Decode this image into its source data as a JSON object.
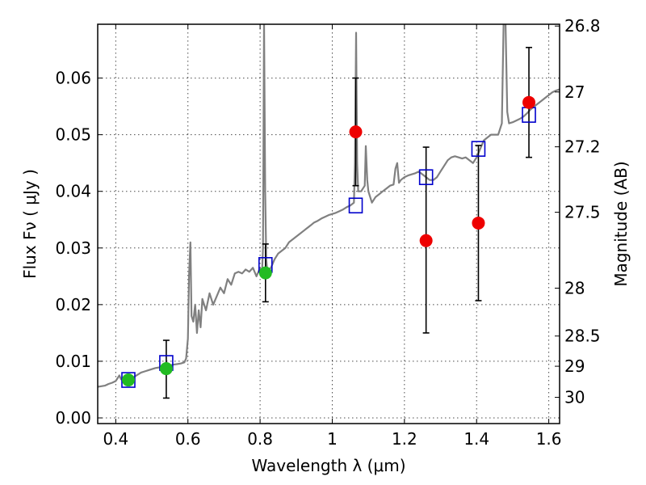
{
  "chart_data": {
    "type": "scatter",
    "x_axis": {
      "label": "Wavelength  λ (μm)",
      "range": [
        0.35,
        1.63
      ],
      "ticks": [
        0.4,
        0.6,
        0.8,
        1.0,
        1.2,
        1.4,
        1.6
      ],
      "tick_labels": [
        "0.4",
        "0.6",
        "0.8",
        "1",
        "1.2",
        "1.4",
        "1.6"
      ]
    },
    "y_axis": {
      "label": "Flux  Fν  ( μJy )",
      "range": [
        -0.001,
        0.0695
      ],
      "ticks": [
        0.0,
        0.01,
        0.02,
        0.03,
        0.04,
        0.05,
        0.06
      ],
      "tick_labels": [
        "0.00",
        "0.01",
        "0.02",
        "0.03",
        "0.04",
        "0.05",
        "0.06"
      ]
    },
    "y2_axis": {
      "label": "Magnitude (AB)",
      "ticks": [
        26.8,
        27,
        27.2,
        27.5,
        28,
        28.5,
        29,
        30
      ],
      "tick_labels": [
        "26.8",
        "27",
        "27.2",
        "27.5",
        "28",
        "28.5",
        "29",
        "30"
      ]
    },
    "grid": true,
    "colors": {
      "spectrum": "#808080",
      "model_boxes": "#0000cc",
      "detections_optical": "#22bb22",
      "detections_nir": "#ee0000",
      "errorbars": "#000000"
    },
    "series": [
      {
        "type": "line",
        "points": [
          [
            0.35,
            0.0055
          ],
          [
            0.36,
            0.0056
          ],
          [
            0.37,
            0.0057
          ],
          [
            0.38,
            0.006
          ],
          [
            0.39,
            0.0062
          ],
          [
            0.4,
            0.0065
          ],
          [
            0.405,
            0.007
          ],
          [
            0.41,
            0.0075
          ],
          [
            0.415,
            0.0068
          ],
          [
            0.42,
            0.0066
          ],
          [
            0.43,
            0.0068
          ],
          [
            0.44,
            0.007
          ],
          [
            0.45,
            0.0072
          ],
          [
            0.46,
            0.0076
          ],
          [
            0.47,
            0.008
          ],
          [
            0.48,
            0.0082
          ],
          [
            0.49,
            0.0084
          ],
          [
            0.5,
            0.0086
          ],
          [
            0.51,
            0.0088
          ],
          [
            0.52,
            0.0089
          ],
          [
            0.53,
            0.009
          ],
          [
            0.54,
            0.0092
          ],
          [
            0.55,
            0.0093
          ],
          [
            0.56,
            0.0094
          ],
          [
            0.57,
            0.0095
          ],
          [
            0.58,
            0.0096
          ],
          [
            0.59,
            0.0098
          ],
          [
            0.595,
            0.0105
          ],
          [
            0.6,
            0.014
          ],
          [
            0.603,
            0.025
          ],
          [
            0.607,
            0.031
          ],
          [
            0.61,
            0.018
          ],
          [
            0.615,
            0.017
          ],
          [
            0.62,
            0.02
          ],
          [
            0.625,
            0.015
          ],
          [
            0.63,
            0.019
          ],
          [
            0.635,
            0.016
          ],
          [
            0.64,
            0.021
          ],
          [
            0.65,
            0.019
          ],
          [
            0.66,
            0.022
          ],
          [
            0.67,
            0.02
          ],
          [
            0.68,
            0.0215
          ],
          [
            0.69,
            0.023
          ],
          [
            0.7,
            0.022
          ],
          [
            0.71,
            0.0245
          ],
          [
            0.72,
            0.0235
          ],
          [
            0.73,
            0.0255
          ],
          [
            0.74,
            0.0258
          ],
          [
            0.75,
            0.0255
          ],
          [
            0.76,
            0.0262
          ],
          [
            0.77,
            0.0258
          ],
          [
            0.78,
            0.0265
          ],
          [
            0.79,
            0.025
          ],
          [
            0.8,
            0.0265
          ],
          [
            0.805,
            0.025
          ],
          [
            0.808,
            0.03
          ],
          [
            0.811,
            0.07
          ],
          [
            0.814,
            0.04
          ],
          [
            0.817,
            0.028
          ],
          [
            0.82,
            0.026
          ],
          [
            0.83,
            0.0265
          ],
          [
            0.84,
            0.028
          ],
          [
            0.85,
            0.029
          ],
          [
            0.86,
            0.0295
          ],
          [
            0.87,
            0.03
          ],
          [
            0.88,
            0.031
          ],
          [
            0.89,
            0.0315
          ],
          [
            0.9,
            0.032
          ],
          [
            0.91,
            0.0325
          ],
          [
            0.92,
            0.033
          ],
          [
            0.93,
            0.0335
          ],
          [
            0.94,
            0.034
          ],
          [
            0.95,
            0.0345
          ],
          [
            0.96,
            0.0348
          ],
          [
            0.97,
            0.0352
          ],
          [
            0.98,
            0.0355
          ],
          [
            0.99,
            0.0358
          ],
          [
            1.0,
            0.036
          ],
          [
            1.01,
            0.0362
          ],
          [
            1.02,
            0.0365
          ],
          [
            1.03,
            0.0368
          ],
          [
            1.04,
            0.0372
          ],
          [
            1.05,
            0.0375
          ],
          [
            1.06,
            0.038
          ],
          [
            1.063,
            0.045
          ],
          [
            1.066,
            0.068
          ],
          [
            1.069,
            0.045
          ],
          [
            1.072,
            0.04
          ],
          [
            1.08,
            0.04
          ],
          [
            1.09,
            0.041
          ],
          [
            1.093,
            0.048
          ],
          [
            1.097,
            0.042
          ],
          [
            1.1,
            0.04
          ],
          [
            1.11,
            0.038
          ],
          [
            1.12,
            0.039
          ],
          [
            1.13,
            0.0395
          ],
          [
            1.14,
            0.04
          ],
          [
            1.15,
            0.0405
          ],
          [
            1.16,
            0.041
          ],
          [
            1.17,
            0.0412
          ],
          [
            1.175,
            0.044
          ],
          [
            1.18,
            0.045
          ],
          [
            1.185,
            0.0415
          ],
          [
            1.19,
            0.042
          ],
          [
            1.2,
            0.0425
          ],
          [
            1.21,
            0.0428
          ],
          [
            1.22,
            0.043
          ],
          [
            1.23,
            0.0432
          ],
          [
            1.24,
            0.0435
          ],
          [
            1.25,
            0.043
          ],
          [
            1.26,
            0.0425
          ],
          [
            1.27,
            0.042
          ],
          [
            1.28,
            0.042
          ],
          [
            1.29,
            0.0425
          ],
          [
            1.3,
            0.0435
          ],
          [
            1.31,
            0.0445
          ],
          [
            1.32,
            0.0455
          ],
          [
            1.33,
            0.046
          ],
          [
            1.34,
            0.0462
          ],
          [
            1.35,
            0.046
          ],
          [
            1.36,
            0.0458
          ],
          [
            1.37,
            0.046
          ],
          [
            1.38,
            0.0455
          ],
          [
            1.39,
            0.045
          ],
          [
            1.4,
            0.046
          ],
          [
            1.41,
            0.0475
          ],
          [
            1.42,
            0.049
          ],
          [
            1.43,
            0.0495
          ],
          [
            1.44,
            0.05
          ],
          [
            1.45,
            0.05
          ],
          [
            1.46,
            0.05
          ],
          [
            1.47,
            0.052
          ],
          [
            1.475,
            0.07
          ],
          [
            1.48,
            0.07
          ],
          [
            1.485,
            0.054
          ],
          [
            1.49,
            0.052
          ],
          [
            1.5,
            0.0522
          ],
          [
            1.51,
            0.0525
          ],
          [
            1.52,
            0.0528
          ],
          [
            1.53,
            0.0532
          ],
          [
            1.54,
            0.0538
          ],
          [
            1.55,
            0.0545
          ],
          [
            1.56,
            0.055
          ],
          [
            1.57,
            0.0555
          ],
          [
            1.58,
            0.056
          ],
          [
            1.59,
            0.0565
          ],
          [
            1.6,
            0.057
          ],
          [
            1.61,
            0.0575
          ],
          [
            1.62,
            0.0578
          ],
          [
            1.63,
            0.058
          ]
        ]
      },
      {
        "type": "scatter",
        "marker": "open-square",
        "x": [
          0.435,
          0.54,
          0.815,
          1.065,
          1.26,
          1.405,
          1.545
        ],
        "y": [
          0.0067,
          0.0097,
          0.027,
          0.0375,
          0.0425,
          0.0475,
          0.0535
        ]
      },
      {
        "type": "scatter",
        "marker": "filled-circle",
        "x": [
          0.435,
          0.54,
          0.815
        ],
        "y": [
          0.0067,
          0.0087,
          0.0256
        ],
        "yerr_low": [
          0.0,
          0.0052,
          0.0051
        ],
        "yerr_high": [
          0.0,
          0.005,
          0.0051
        ]
      },
      {
        "type": "scatter",
        "marker": "filled-circle",
        "x": [
          1.065,
          1.26,
          1.405,
          1.545
        ],
        "y": [
          0.0505,
          0.0313,
          0.0344,
          0.0557
        ],
        "yerr_low": [
          0.0095,
          0.0163,
          0.0137,
          0.0097
        ],
        "yerr_high": [
          0.0095,
          0.0165,
          0.0137,
          0.0097
        ]
      }
    ]
  }
}
